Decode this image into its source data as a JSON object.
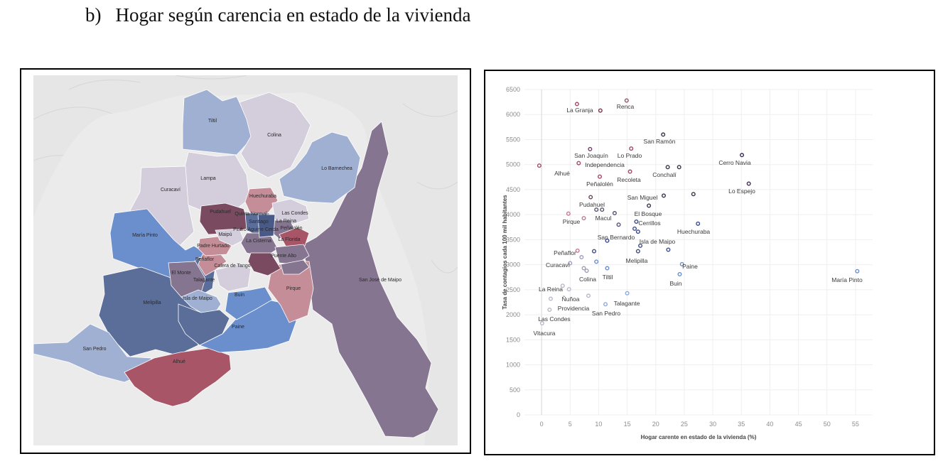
{
  "heading": {
    "marker": "b)",
    "title": "Hogar según carencia en estado de la vivienda"
  },
  "map": {
    "colors": {
      "dark_purple": "#857590",
      "navy": "#5b6d99",
      "blue": "#6a8fcc",
      "light_blue": "#9fb0d3",
      "lilac": "#d3cddc",
      "crimson": "#a85567",
      "pink": "#c48d98",
      "terrain": "#e6e6e6"
    },
    "labels": [
      "Tiltil",
      "Colina",
      "Lampa",
      "Curacaví",
      "Lo Barnechea",
      "Huechuraba",
      "Pudahuel",
      "Quinta Normal",
      "Las Condes",
      "Santiago",
      "La Reina",
      "María Pinto",
      "Maipú",
      "Pedro Aguirre Cerda",
      "Peñalolén",
      "La Cisterna",
      "La Florida",
      "Padre Hurtado",
      "Puente Alto",
      "Peñaflor",
      "Calera de Tango",
      "El Monte",
      "Talagante",
      "San José de Maipo",
      "Pirque",
      "Melipilla",
      "Isla de Maipo",
      "Buin",
      "Paine",
      "San Pedro",
      "Alhué"
    ]
  },
  "chart_data": {
    "type": "scatter",
    "xlabel": "Hogar carente en estado de la vivienda (%)",
    "ylabel": "Tasa de contagios cada 100 mil habitantes",
    "xlim": [
      -3,
      58
    ],
    "ylim": [
      0,
      6500
    ],
    "xticks": [
      0,
      5,
      10,
      15,
      20,
      25,
      30,
      35,
      40,
      45,
      50,
      55
    ],
    "yticks": [
      0,
      500,
      1000,
      1500,
      2000,
      2500,
      3000,
      3500,
      4000,
      4500,
      5000,
      5500,
      6000,
      6500
    ],
    "grid": true,
    "points": [
      {
        "name": "Renca",
        "x": 14.9,
        "y": 6280,
        "color": "#a04a62"
      },
      {
        "name": "La Granja",
        "x": 6.2,
        "y": 6210,
        "color": "#a04a62"
      },
      {
        "name": "",
        "x": 10.3,
        "y": 6080,
        "color": "#7a3248"
      },
      {
        "name": "San Ramón",
        "x": 21.3,
        "y": 5600,
        "color": "#3d2e52"
      },
      {
        "name": "",
        "x": 8.5,
        "y": 5310,
        "color": "#6d3f62"
      },
      {
        "name": "",
        "x": 15.7,
        "y": 5320,
        "color": "#a04a62"
      },
      {
        "name": "Cerro Navia",
        "x": 35.1,
        "y": 5190,
        "color": "#3d2e52"
      },
      {
        "name": "",
        "x": 22.1,
        "y": 4950,
        "color": "#3d2e52"
      },
      {
        "name": "",
        "x": 24.1,
        "y": 4950,
        "color": "#3d2e52"
      },
      {
        "name": "",
        "x": 6.5,
        "y": 5030,
        "color": "#a04a62"
      },
      {
        "name": "",
        "x": -0.4,
        "y": 4980,
        "color": "#a04a62"
      },
      {
        "name": "",
        "x": 15.5,
        "y": 4860,
        "color": "#a04a62"
      },
      {
        "name": "",
        "x": 10.2,
        "y": 4760,
        "color": "#a04a62"
      },
      {
        "name": "Lo Espejo",
        "x": 36.3,
        "y": 4620,
        "color": "#3d2e52"
      },
      {
        "name": "",
        "x": 21.4,
        "y": 4380,
        "color": "#3d2e52"
      },
      {
        "name": "",
        "x": 26.6,
        "y": 4410,
        "color": "#3d2e52"
      },
      {
        "name": "",
        "x": 8.6,
        "y": 4350,
        "color": "#6d3f62"
      },
      {
        "name": "",
        "x": 18.8,
        "y": 4180,
        "color": "#3d2e52"
      },
      {
        "name": "",
        "x": 9.6,
        "y": 4100,
        "color": "#5a5070"
      },
      {
        "name": "",
        "x": 10.6,
        "y": 4100,
        "color": "#5a5070"
      },
      {
        "name": "",
        "x": 12.8,
        "y": 4030,
        "color": "#5a5070"
      },
      {
        "name": "",
        "x": 4.7,
        "y": 4020,
        "color": "#c47a90"
      },
      {
        "name": "Pirque",
        "x": 7.4,
        "y": 3930,
        "color": "#c47a90"
      },
      {
        "name": "",
        "x": 16.6,
        "y": 3860,
        "color": "#3a4a8e"
      },
      {
        "name": "",
        "x": 27.4,
        "y": 3820,
        "color": "#3a4a8e"
      },
      {
        "name": "",
        "x": 13.5,
        "y": 3800,
        "color": "#5a5070"
      },
      {
        "name": "",
        "x": 16.3,
        "y": 3720,
        "color": "#3a4a8e"
      },
      {
        "name": "",
        "x": 16.9,
        "y": 3660,
        "color": "#3a4a8e"
      },
      {
        "name": "",
        "x": 11.5,
        "y": 3480,
        "color": "#3a4a8e"
      },
      {
        "name": "",
        "x": 17.3,
        "y": 3380,
        "color": "#3a4a8e"
      },
      {
        "name": "",
        "x": 22.2,
        "y": 3300,
        "color": "#3a4a8e"
      },
      {
        "name": "",
        "x": 9.2,
        "y": 3270,
        "color": "#3a4a8e"
      },
      {
        "name": "",
        "x": 6.3,
        "y": 3280,
        "color": "#c47a90"
      },
      {
        "name": "",
        "x": 16.9,
        "y": 3270,
        "color": "#3a4a8e"
      },
      {
        "name": "",
        "x": 7.0,
        "y": 3150,
        "color": "#a0a0b8"
      },
      {
        "name": "",
        "x": 5.0,
        "y": 3030,
        "color": "#a0a0b8"
      },
      {
        "name": "",
        "x": 9.6,
        "y": 3060,
        "color": "#6a8fcc"
      },
      {
        "name": "",
        "x": 24.6,
        "y": 3010,
        "color": "#6a8fcc"
      },
      {
        "name": "",
        "x": 7.4,
        "y": 2930,
        "color": "#a0a0b8"
      },
      {
        "name": "",
        "x": 11.5,
        "y": 2930,
        "color": "#6a8fcc"
      },
      {
        "name": "",
        "x": 7.9,
        "y": 2880,
        "color": "#a0a0b8"
      },
      {
        "name": "María Pinto",
        "x": 55.3,
        "y": 2870,
        "color": "#6a8fcc"
      },
      {
        "name": "",
        "x": 24.2,
        "y": 2810,
        "color": "#6a8fcc"
      },
      {
        "name": "",
        "x": 3.7,
        "y": 2580,
        "color": "#b8b8c8"
      },
      {
        "name": "",
        "x": 4.8,
        "y": 2510,
        "color": "#b8b8c8"
      },
      {
        "name": "",
        "x": 15.0,
        "y": 2430,
        "color": "#8fa8d8"
      },
      {
        "name": "",
        "x": 8.2,
        "y": 2380,
        "color": "#b8b8c8"
      },
      {
        "name": "",
        "x": 1.6,
        "y": 2320,
        "color": "#b8b8c8"
      },
      {
        "name": "",
        "x": 11.2,
        "y": 2210,
        "color": "#8fa8d8"
      },
      {
        "name": "",
        "x": 1.4,
        "y": 2100,
        "color": "#b8b8c8"
      },
      {
        "name": "Vitacura",
        "x": 0.1,
        "y": 1830,
        "color": "#b8b8c8"
      }
    ]
  }
}
